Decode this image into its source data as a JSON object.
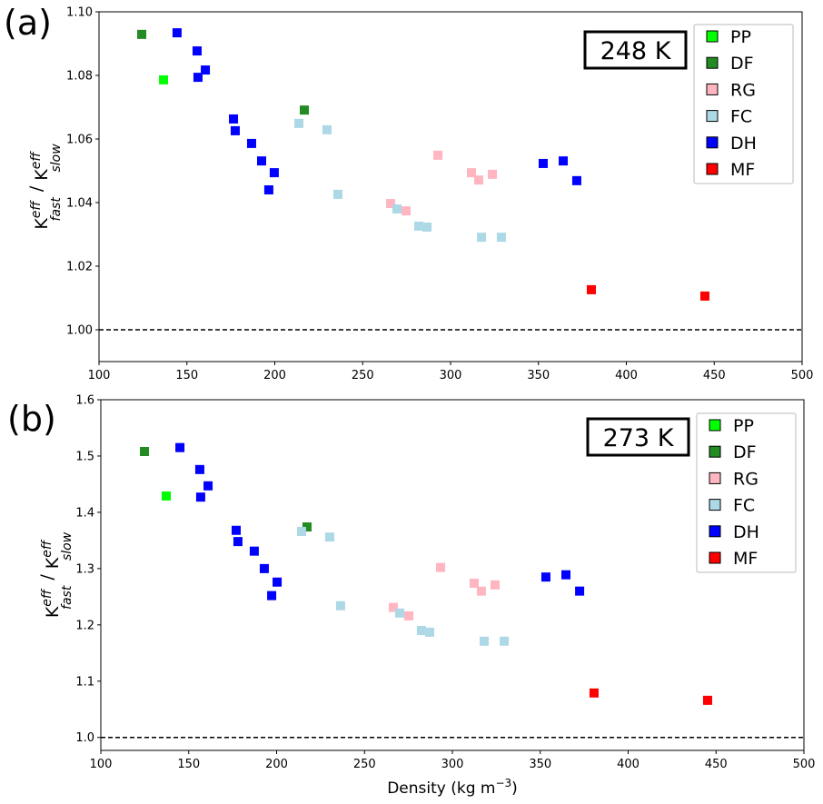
{
  "chart_data": [
    {
      "type": "scatter",
      "panel_label": "(a)",
      "annotation": "248 K",
      "xlabel": "",
      "ylabel": {
        "base": "K",
        "sup": "eff",
        "sub1": "fast",
        "sep": " / ",
        "sub2": "slow"
      },
      "xlim": [
        100,
        500
      ],
      "ylim": [
        0.99,
        1.1
      ],
      "xticks": [
        100,
        150,
        200,
        250,
        300,
        350,
        400,
        450,
        500
      ],
      "yticks": [
        1.0,
        1.02,
        1.04,
        1.06,
        1.08,
        1.1
      ],
      "ytick_decimals": 2,
      "reference_line": 1.0,
      "legend_position": "top-right",
      "series": [
        {
          "name": "PP",
          "color": "#00ff00",
          "points": [
            [
              136.7,
              1.0786
            ]
          ]
        },
        {
          "name": "DF",
          "color": "#228b22",
          "points": [
            [
              124.3,
              1.0929
            ],
            [
              216.8,
              1.0691
            ]
          ]
        },
        {
          "name": "RG",
          "color": "#ffb6c1",
          "points": [
            [
              265.9,
              1.0397
            ],
            [
              274.7,
              1.0374
            ],
            [
              292.8,
              1.0549
            ],
            [
              311.9,
              1.0494
            ],
            [
              316.0,
              1.0471
            ],
            [
              323.8,
              1.0489
            ]
          ]
        },
        {
          "name": "FC",
          "color": "#add8e6",
          "points": [
            [
              213.7,
              1.0649
            ],
            [
              229.7,
              1.0629
            ],
            [
              235.9,
              1.0426
            ],
            [
              269.5,
              1.038
            ],
            [
              281.9,
              1.0326
            ],
            [
              286.6,
              1.0323
            ],
            [
              317.6,
              1.0291
            ],
            [
              328.9,
              1.0291
            ]
          ]
        },
        {
          "name": "DH",
          "color": "#0000ff",
          "points": [
            [
              144.4,
              1.0934
            ],
            [
              155.8,
              1.0877
            ],
            [
              160.5,
              1.0817
            ],
            [
              156.3,
              1.0794
            ],
            [
              176.5,
              1.0663
            ],
            [
              177.5,
              1.0626
            ],
            [
              186.8,
              1.0586
            ],
            [
              192.5,
              1.0531
            ],
            [
              199.7,
              1.0494
            ],
            [
              196.6,
              1.044
            ],
            [
              352.7,
              1.0523
            ],
            [
              364.1,
              1.0531
            ],
            [
              371.8,
              1.0469
            ]
          ]
        },
        {
          "name": "MF",
          "color": "#ff0000",
          "points": [
            [
              380.1,
              1.0126
            ],
            [
              444.7,
              1.0106
            ]
          ]
        }
      ]
    },
    {
      "type": "scatter",
      "panel_label": "(b)",
      "annotation": "273 K",
      "xlabel": {
        "text": "Density (kg m",
        "sup": "−3",
        "end": ")"
      },
      "ylabel": {
        "base": "K",
        "sup": "eff",
        "sub1": "fast",
        "sep": " / ",
        "sub2": "slow"
      },
      "xlim": [
        100,
        500
      ],
      "ylim": [
        0.977,
        1.6
      ],
      "xticks": [
        100,
        150,
        200,
        250,
        300,
        350,
        400,
        450,
        500
      ],
      "yticks": [
        1.0,
        1.1,
        1.2,
        1.3,
        1.4,
        1.5,
        1.6
      ],
      "ytick_decimals": 1,
      "reference_line": 1.0,
      "legend_position": "top-right",
      "series": [
        {
          "name": "PP",
          "color": "#00ff00",
          "points": [
            [
              137.2,
              1.429
            ]
          ]
        },
        {
          "name": "DF",
          "color": "#228b22",
          "points": [
            [
              124.8,
              1.508
            ],
            [
              217.3,
              1.374
            ]
          ]
        },
        {
          "name": "RG",
          "color": "#ffb6c1",
          "points": [
            [
              266.4,
              1.231
            ],
            [
              275.2,
              1.216
            ],
            [
              293.3,
              1.302
            ],
            [
              312.4,
              1.274
            ],
            [
              316.5,
              1.26
            ],
            [
              324.3,
              1.271
            ]
          ]
        },
        {
          "name": "FC",
          "color": "#add8e6",
          "points": [
            [
              214.2,
              1.366
            ],
            [
              230.2,
              1.356
            ],
            [
              236.4,
              1.234
            ],
            [
              270.0,
              1.221
            ],
            [
              282.4,
              1.19
            ],
            [
              287.1,
              1.187
            ],
            [
              318.1,
              1.171
            ],
            [
              329.5,
              1.171
            ]
          ]
        },
        {
          "name": "DH",
          "color": "#0000ff",
          "points": [
            [
              145.0,
              1.515
            ],
            [
              156.3,
              1.476
            ],
            [
              161.0,
              1.447
            ],
            [
              156.8,
              1.427
            ],
            [
              177.0,
              1.368
            ],
            [
              178.0,
              1.348
            ],
            [
              187.3,
              1.331
            ],
            [
              193.0,
              1.3
            ],
            [
              200.3,
              1.276
            ],
            [
              197.2,
              1.252
            ],
            [
              353.2,
              1.285
            ],
            [
              364.6,
              1.289
            ],
            [
              372.4,
              1.26
            ]
          ]
        },
        {
          "name": "MF",
          "color": "#ff0000",
          "points": [
            [
              380.6,
              1.079
            ],
            [
              445.2,
              1.066
            ]
          ]
        }
      ]
    }
  ]
}
